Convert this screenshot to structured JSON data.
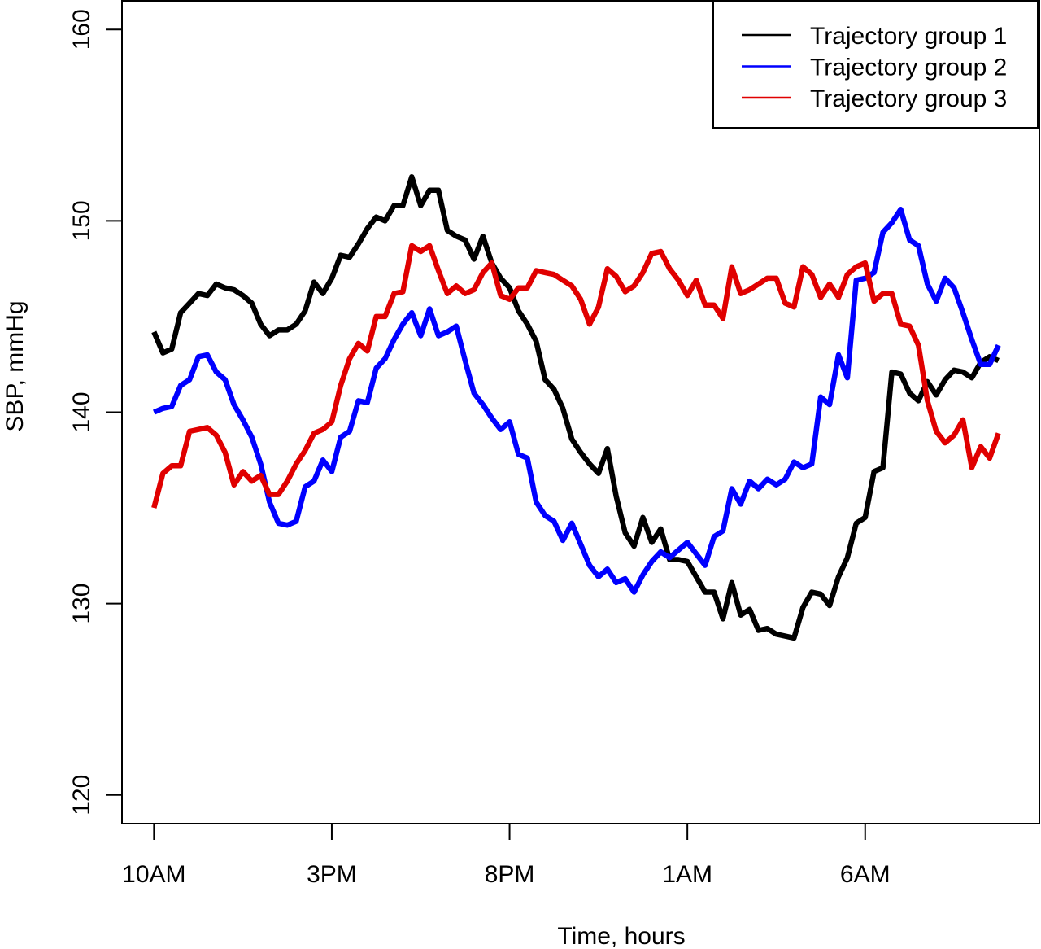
{
  "chart_data": {
    "type": "line",
    "xlabel": "Time, hours",
    "ylabel": "SBP, mmHg",
    "xlim": [
      -0.9,
      24.9
    ],
    "ylim": [
      118.5,
      161.5
    ],
    "x_ticks": [
      {
        "value": 0,
        "label": "10AM"
      },
      {
        "value": 5,
        "label": "3PM"
      },
      {
        "value": 10,
        "label": "8PM"
      },
      {
        "value": 15,
        "label": "1AM"
      },
      {
        "value": 20,
        "label": "6AM"
      }
    ],
    "y_ticks": [
      120,
      130,
      140,
      150,
      160
    ],
    "legend_position": "top-right",
    "grid": false,
    "series": [
      {
        "name": "Trajectory group 1",
        "color": "#000000",
        "points": [
          [
            0,
            144.2
          ],
          [
            0.25,
            143.1
          ],
          [
            0.5,
            143.3
          ],
          [
            0.75,
            145.2
          ],
          [
            1,
            145.7
          ],
          [
            1.25,
            146.2
          ],
          [
            1.5,
            146.1
          ],
          [
            1.75,
            146.7
          ],
          [
            2,
            146.5
          ],
          [
            2.25,
            146.4
          ],
          [
            2.5,
            146.1
          ],
          [
            2.75,
            145.7
          ],
          [
            3,
            144.6
          ],
          [
            3.25,
            144.0
          ],
          [
            3.5,
            144.3
          ],
          [
            3.75,
            144.3
          ],
          [
            4,
            144.6
          ],
          [
            4.25,
            145.3
          ],
          [
            4.5,
            146.8
          ],
          [
            4.75,
            146.2
          ],
          [
            5,
            147.0
          ],
          [
            5.25,
            148.2
          ],
          [
            5.5,
            148.1
          ],
          [
            5.75,
            148.8
          ],
          [
            6,
            149.6
          ],
          [
            6.25,
            150.2
          ],
          [
            6.5,
            150.0
          ],
          [
            6.75,
            150.8
          ],
          [
            7,
            150.8
          ],
          [
            7.25,
            152.3
          ],
          [
            7.5,
            150.8
          ],
          [
            7.75,
            151.6
          ],
          [
            8,
            151.6
          ],
          [
            8.25,
            149.5
          ],
          [
            8.5,
            149.2
          ],
          [
            8.75,
            149.0
          ],
          [
            9,
            148.0
          ],
          [
            9.25,
            149.2
          ],
          [
            9.5,
            147.8
          ],
          [
            9.75,
            147.0
          ],
          [
            10,
            146.5
          ],
          [
            10.25,
            145.3
          ],
          [
            10.5,
            144.6
          ],
          [
            10.75,
            143.7
          ],
          [
            11,
            141.7
          ],
          [
            11.25,
            141.2
          ],
          [
            11.5,
            140.2
          ],
          [
            11.75,
            138.6
          ],
          [
            12,
            137.9
          ],
          [
            12.25,
            137.3
          ],
          [
            12.5,
            136.8
          ],
          [
            12.75,
            138.1
          ],
          [
            13,
            135.6
          ],
          [
            13.25,
            133.7
          ],
          [
            13.5,
            133.0
          ],
          [
            13.75,
            134.5
          ],
          [
            14,
            133.2
          ],
          [
            14.25,
            133.9
          ],
          [
            14.5,
            132.3
          ],
          [
            14.75,
            132.3
          ],
          [
            15,
            132.2
          ],
          [
            15.25,
            131.4
          ],
          [
            15.5,
            130.6
          ],
          [
            15.75,
            130.6
          ],
          [
            16,
            129.2
          ],
          [
            16.25,
            131.1
          ],
          [
            16.5,
            129.4
          ],
          [
            16.75,
            129.7
          ],
          [
            17,
            128.6
          ],
          [
            17.25,
            128.7
          ],
          [
            17.5,
            128.4
          ],
          [
            17.75,
            128.3
          ],
          [
            18,
            128.2
          ],
          [
            18.25,
            129.8
          ],
          [
            18.5,
            130.6
          ],
          [
            18.75,
            130.5
          ],
          [
            19,
            129.9
          ],
          [
            19.25,
            131.4
          ],
          [
            19.5,
            132.4
          ],
          [
            19.75,
            134.2
          ],
          [
            20,
            134.5
          ],
          [
            20.25,
            136.9
          ],
          [
            20.5,
            137.1
          ],
          [
            20.75,
            142.1
          ],
          [
            21,
            142.0
          ],
          [
            21.25,
            141.0
          ],
          [
            21.5,
            140.6
          ],
          [
            21.75,
            141.6
          ],
          [
            22,
            140.9
          ],
          [
            22.25,
            141.7
          ],
          [
            22.5,
            142.2
          ],
          [
            22.75,
            142.1
          ],
          [
            23,
            141.8
          ],
          [
            23.25,
            142.6
          ],
          [
            23.5,
            142.9
          ],
          [
            23.75,
            142.7
          ]
        ]
      },
      {
        "name": "Trajectory group 2",
        "color": "#0000ff",
        "points": [
          [
            0,
            140.0
          ],
          [
            0.25,
            140.2
          ],
          [
            0.5,
            140.3
          ],
          [
            0.75,
            141.4
          ],
          [
            1,
            141.7
          ],
          [
            1.25,
            142.9
          ],
          [
            1.5,
            143.0
          ],
          [
            1.75,
            142.1
          ],
          [
            2,
            141.7
          ],
          [
            2.25,
            140.4
          ],
          [
            2.5,
            139.6
          ],
          [
            2.75,
            138.7
          ],
          [
            3,
            137.3
          ],
          [
            3.25,
            135.3
          ],
          [
            3.5,
            134.2
          ],
          [
            3.75,
            134.1
          ],
          [
            4,
            134.3
          ],
          [
            4.25,
            136.1
          ],
          [
            4.5,
            136.4
          ],
          [
            4.75,
            137.5
          ],
          [
            5,
            136.9
          ],
          [
            5.25,
            138.7
          ],
          [
            5.5,
            139.0
          ],
          [
            5.75,
            140.6
          ],
          [
            6,
            140.5
          ],
          [
            6.25,
            142.3
          ],
          [
            6.5,
            142.8
          ],
          [
            6.75,
            143.8
          ],
          [
            7,
            144.6
          ],
          [
            7.25,
            145.2
          ],
          [
            7.5,
            144.0
          ],
          [
            7.75,
            145.4
          ],
          [
            8,
            144.0
          ],
          [
            8.25,
            144.2
          ],
          [
            8.5,
            144.5
          ],
          [
            8.75,
            142.7
          ],
          [
            9,
            141.0
          ],
          [
            9.25,
            140.4
          ],
          [
            9.5,
            139.7
          ],
          [
            9.75,
            139.1
          ],
          [
            10,
            139.5
          ],
          [
            10.25,
            137.8
          ],
          [
            10.5,
            137.6
          ],
          [
            10.75,
            135.3
          ],
          [
            11,
            134.6
          ],
          [
            11.25,
            134.3
          ],
          [
            11.5,
            133.3
          ],
          [
            11.75,
            134.2
          ],
          [
            12,
            133.1
          ],
          [
            12.25,
            132.0
          ],
          [
            12.5,
            131.4
          ],
          [
            12.75,
            131.8
          ],
          [
            13,
            131.1
          ],
          [
            13.25,
            131.3
          ],
          [
            13.5,
            130.6
          ],
          [
            13.75,
            131.5
          ],
          [
            14,
            132.2
          ],
          [
            14.25,
            132.7
          ],
          [
            14.5,
            132.4
          ],
          [
            14.75,
            132.8
          ],
          [
            15,
            133.2
          ],
          [
            15.25,
            132.6
          ],
          [
            15.5,
            132.0
          ],
          [
            15.75,
            133.5
          ],
          [
            16,
            133.8
          ],
          [
            16.25,
            136.0
          ],
          [
            16.5,
            135.2
          ],
          [
            16.75,
            136.4
          ],
          [
            17,
            136.0
          ],
          [
            17.25,
            136.5
          ],
          [
            17.5,
            136.2
          ],
          [
            17.75,
            136.5
          ],
          [
            18,
            137.4
          ],
          [
            18.25,
            137.1
          ],
          [
            18.5,
            137.3
          ],
          [
            18.75,
            140.8
          ],
          [
            19,
            140.4
          ],
          [
            19.25,
            143.0
          ],
          [
            19.5,
            141.8
          ],
          [
            19.75,
            146.9
          ],
          [
            20,
            147.0
          ],
          [
            20.25,
            147.3
          ],
          [
            20.5,
            149.4
          ],
          [
            20.75,
            149.9
          ],
          [
            21,
            150.6
          ],
          [
            21.25,
            149.0
          ],
          [
            21.5,
            148.7
          ],
          [
            21.75,
            146.7
          ],
          [
            22,
            145.8
          ],
          [
            22.25,
            147.0
          ],
          [
            22.5,
            146.5
          ],
          [
            22.75,
            145.2
          ],
          [
            23,
            143.8
          ],
          [
            23.25,
            142.5
          ],
          [
            23.5,
            142.5
          ],
          [
            23.75,
            143.5
          ]
        ]
      },
      {
        "name": "Trajectory group 3",
        "color": "#e00000",
        "points": [
          [
            0,
            135.0
          ],
          [
            0.25,
            136.8
          ],
          [
            0.5,
            137.2
          ],
          [
            0.75,
            137.2
          ],
          [
            1,
            139.0
          ],
          [
            1.25,
            139.1
          ],
          [
            1.5,
            139.2
          ],
          [
            1.75,
            138.8
          ],
          [
            2,
            137.9
          ],
          [
            2.25,
            136.2
          ],
          [
            2.5,
            136.9
          ],
          [
            2.75,
            136.4
          ],
          [
            3,
            136.7
          ],
          [
            3.25,
            135.7
          ],
          [
            3.5,
            135.7
          ],
          [
            3.75,
            136.4
          ],
          [
            4,
            137.3
          ],
          [
            4.25,
            138.0
          ],
          [
            4.5,
            138.9
          ],
          [
            4.75,
            139.1
          ],
          [
            5,
            139.5
          ],
          [
            5.25,
            141.4
          ],
          [
            5.5,
            142.8
          ],
          [
            5.75,
            143.6
          ],
          [
            6,
            143.2
          ],
          [
            6.25,
            145.0
          ],
          [
            6.5,
            145.0
          ],
          [
            6.75,
            146.2
          ],
          [
            7,
            146.3
          ],
          [
            7.25,
            148.7
          ],
          [
            7.5,
            148.4
          ],
          [
            7.75,
            148.7
          ],
          [
            8,
            147.4
          ],
          [
            8.25,
            146.2
          ],
          [
            8.5,
            146.6
          ],
          [
            8.75,
            146.2
          ],
          [
            9,
            146.4
          ],
          [
            9.25,
            147.3
          ],
          [
            9.5,
            147.8
          ],
          [
            9.75,
            146.1
          ],
          [
            10,
            145.9
          ],
          [
            10.25,
            146.5
          ],
          [
            10.5,
            146.5
          ],
          [
            10.75,
            147.4
          ],
          [
            11,
            147.3
          ],
          [
            11.25,
            147.2
          ],
          [
            11.5,
            146.9
          ],
          [
            11.75,
            146.6
          ],
          [
            12,
            145.9
          ],
          [
            12.25,
            144.6
          ],
          [
            12.5,
            145.5
          ],
          [
            12.75,
            147.5
          ],
          [
            13,
            147.1
          ],
          [
            13.25,
            146.3
          ],
          [
            13.5,
            146.6
          ],
          [
            13.75,
            147.3
          ],
          [
            14,
            148.3
          ],
          [
            14.25,
            148.4
          ],
          [
            14.5,
            147.5
          ],
          [
            14.75,
            146.9
          ],
          [
            15,
            146.1
          ],
          [
            15.25,
            146.9
          ],
          [
            15.5,
            145.6
          ],
          [
            15.75,
            145.6
          ],
          [
            16,
            144.9
          ],
          [
            16.25,
            147.6
          ],
          [
            16.5,
            146.2
          ],
          [
            16.75,
            146.4
          ],
          [
            17,
            146.7
          ],
          [
            17.25,
            147.0
          ],
          [
            17.5,
            147.0
          ],
          [
            17.75,
            145.7
          ],
          [
            18,
            145.5
          ],
          [
            18.25,
            147.6
          ],
          [
            18.5,
            147.2
          ],
          [
            18.75,
            146.0
          ],
          [
            19,
            146.7
          ],
          [
            19.25,
            146.0
          ],
          [
            19.5,
            147.2
          ],
          [
            19.75,
            147.6
          ],
          [
            20,
            147.8
          ],
          [
            20.25,
            145.8
          ],
          [
            20.5,
            146.2
          ],
          [
            20.75,
            146.2
          ],
          [
            21,
            144.6
          ],
          [
            21.25,
            144.5
          ],
          [
            21.5,
            143.5
          ],
          [
            21.75,
            140.6
          ],
          [
            22,
            139.0
          ],
          [
            22.25,
            138.4
          ],
          [
            22.5,
            138.8
          ],
          [
            22.75,
            139.6
          ],
          [
            23,
            137.1
          ],
          [
            23.25,
            138.2
          ],
          [
            23.5,
            137.6
          ],
          [
            23.75,
            138.9
          ]
        ]
      }
    ]
  }
}
